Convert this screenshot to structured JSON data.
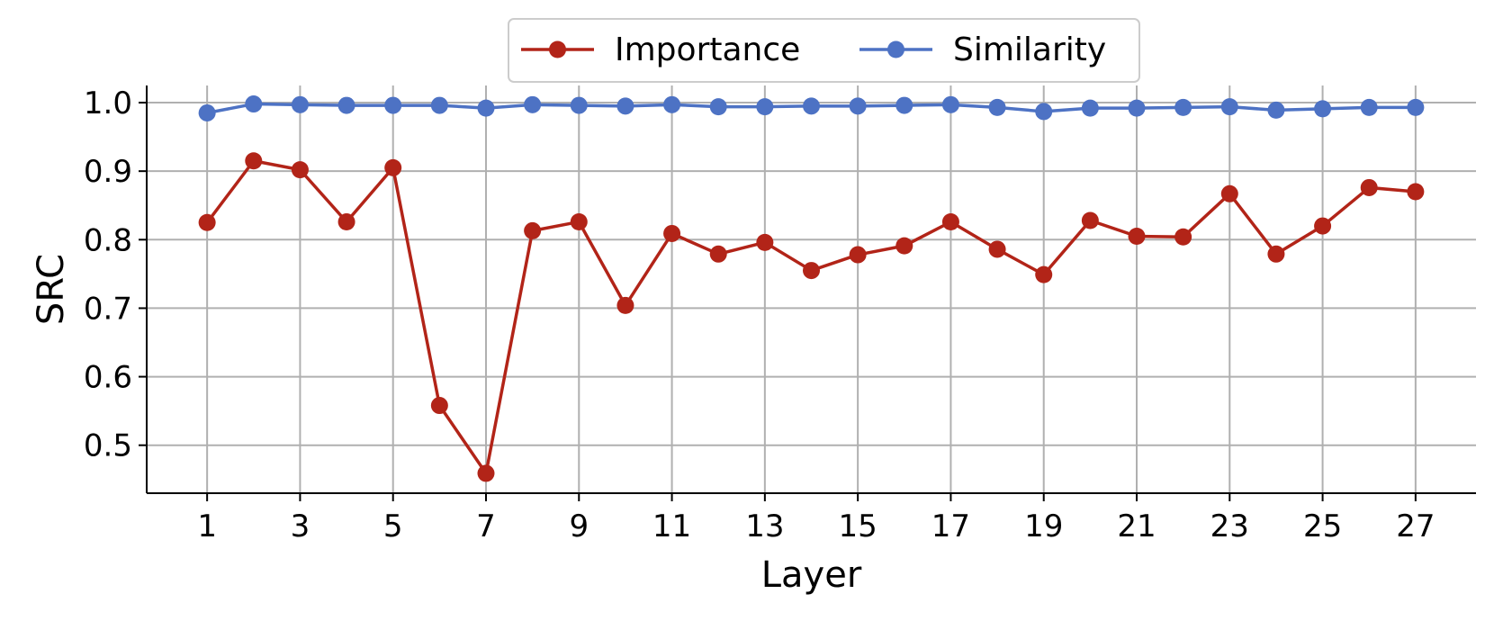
{
  "chart_data": {
    "type": "line",
    "xlabel": "Layer",
    "ylabel": "SRC",
    "x": [
      1,
      2,
      3,
      4,
      5,
      6,
      7,
      8,
      9,
      10,
      11,
      12,
      13,
      14,
      15,
      16,
      17,
      18,
      19,
      20,
      21,
      22,
      23,
      24,
      25,
      26,
      27
    ],
    "xticks": [
      "1",
      "3",
      "5",
      "7",
      "9",
      "11",
      "13",
      "15",
      "17",
      "19",
      "21",
      "23",
      "25",
      "27"
    ],
    "yticks": [
      "0.5",
      "0.6",
      "0.7",
      "0.8",
      "0.9",
      "1.0"
    ],
    "xlim": [
      -0.3,
      28.3
    ],
    "ylim": [
      0.43,
      1.025
    ],
    "grid": true,
    "legend_position": "top-center",
    "series": [
      {
        "name": "Importance",
        "color": "#b22418",
        "values": [
          0.825,
          0.915,
          0.902,
          0.826,
          0.905,
          0.558,
          0.459,
          0.813,
          0.826,
          0.704,
          0.809,
          0.779,
          0.796,
          0.755,
          0.778,
          0.791,
          0.826,
          0.786,
          0.749,
          0.828,
          0.805,
          0.804,
          0.867,
          0.779,
          0.82,
          0.876,
          0.87
        ]
      },
      {
        "name": "Similarity",
        "color": "#4d72c4",
        "values": [
          0.985,
          0.998,
          0.997,
          0.996,
          0.996,
          0.996,
          0.992,
          0.997,
          0.996,
          0.995,
          0.997,
          0.994,
          0.994,
          0.995,
          0.995,
          0.996,
          0.997,
          0.993,
          0.987,
          0.992,
          0.992,
          0.993,
          0.994,
          0.989,
          0.991,
          0.993,
          0.993
        ]
      }
    ]
  }
}
